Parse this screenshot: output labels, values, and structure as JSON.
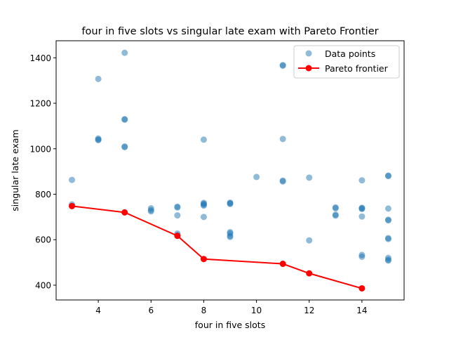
{
  "chart_data": {
    "type": "scatter",
    "title": "four in five slots vs singular late exam with Pareto Frontier",
    "xlabel": "four in five slots",
    "ylabel": "singular late exam",
    "xlim": [
      2.4,
      15.6
    ],
    "ylim": [
      335,
      1475
    ],
    "xticks": [
      4,
      6,
      8,
      10,
      12,
      14
    ],
    "yticks": [
      400,
      600,
      800,
      1000,
      1200,
      1400
    ],
    "grid": false,
    "legend_position": "top-right",
    "series": [
      {
        "name": "Data points",
        "kind": "scatter",
        "color": "#1f77b4",
        "points": [
          [
            3,
            863
          ],
          [
            3,
            755
          ],
          [
            3,
            748
          ],
          [
            4,
            1307
          ],
          [
            4,
            1045
          ],
          [
            4,
            1040
          ],
          [
            4,
            1038
          ],
          [
            5,
            1422
          ],
          [
            5,
            1130
          ],
          [
            5,
            1128
          ],
          [
            5,
            1010
          ],
          [
            5,
            1007
          ],
          [
            5,
            720
          ],
          [
            6,
            738
          ],
          [
            6,
            730
          ],
          [
            6,
            725
          ],
          [
            7,
            745
          ],
          [
            7,
            742
          ],
          [
            7,
            707
          ],
          [
            7,
            627
          ],
          [
            7,
            620
          ],
          [
            8,
            1040
          ],
          [
            8,
            762
          ],
          [
            8,
            758
          ],
          [
            8,
            754
          ],
          [
            8,
            750
          ],
          [
            8,
            700
          ],
          [
            9,
            763
          ],
          [
            9,
            760
          ],
          [
            9,
            757
          ],
          [
            9,
            633
          ],
          [
            9,
            628
          ],
          [
            9,
            617
          ],
          [
            9,
            612
          ],
          [
            10,
            876
          ],
          [
            11,
            1368
          ],
          [
            11,
            1365
          ],
          [
            11,
            1043
          ],
          [
            11,
            860
          ],
          [
            11,
            856
          ],
          [
            12,
            873
          ],
          [
            12,
            597
          ],
          [
            13,
            742
          ],
          [
            13,
            738
          ],
          [
            13,
            710
          ],
          [
            13,
            706
          ],
          [
            14,
            861
          ],
          [
            14,
            740
          ],
          [
            14,
            738
          ],
          [
            14,
            735
          ],
          [
            14,
            702
          ],
          [
            14,
            533
          ],
          [
            14,
            525
          ],
          [
            15,
            882
          ],
          [
            15,
            880
          ],
          [
            15,
            737
          ],
          [
            15,
            688
          ],
          [
            15,
            685
          ],
          [
            15,
            607
          ],
          [
            15,
            603
          ],
          [
            15,
            520
          ],
          [
            15,
            512
          ],
          [
            15,
            508
          ]
        ]
      },
      {
        "name": "Pareto frontier",
        "kind": "line",
        "color": "#ff0000",
        "points": [
          [
            3,
            748
          ],
          [
            5,
            720
          ],
          [
            7,
            617
          ],
          [
            8,
            515
          ],
          [
            11,
            494
          ],
          [
            12,
            452
          ],
          [
            14,
            386
          ]
        ]
      }
    ]
  }
}
